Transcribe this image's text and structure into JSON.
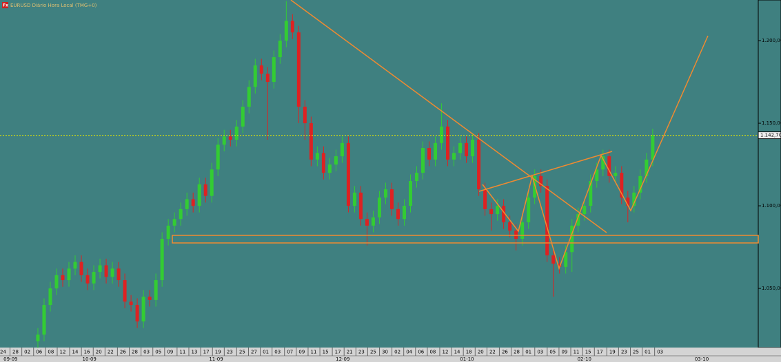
{
  "chart_data": {
    "type": "candlestick",
    "title": "EURUSD Diário Hora Local (TMG+0)",
    "up_color": "#33cc33",
    "down_color": "#dd2222",
    "open": [
      1.018,
      1.022,
      1.04,
      1.05,
      1.058,
      1.055,
      1.062,
      1.066,
      1.058,
      1.053,
      1.06,
      1.064,
      1.057,
      1.062,
      1.055,
      1.042,
      1.04,
      1.03,
      1.045,
      1.043,
      1.055,
      1.08,
      1.088,
      1.092,
      1.098,
      1.104,
      1.1,
      1.113,
      1.106,
      1.122,
      1.137,
      1.142,
      1.14,
      1.148,
      1.16,
      1.172,
      1.185,
      1.18,
      1.175,
      1.19,
      1.2,
      1.212,
      1.205,
      1.16,
      1.15,
      1.128,
      1.132,
      1.12,
      1.125,
      1.13,
      1.138,
      1.1,
      1.108,
      1.092,
      1.088,
      1.093,
      1.105,
      1.11,
      1.098,
      1.092,
      1.1,
      1.115,
      1.12,
      1.135,
      1.128,
      1.138,
      1.148,
      1.128,
      1.132,
      1.138,
      1.13,
      1.14,
      1.11,
      1.098,
      1.095,
      1.1,
      1.09,
      1.085,
      1.08,
      1.09,
      1.105,
      1.118,
      1.112,
      1.07,
      1.065,
      1.063,
      1.072,
      1.088,
      1.095,
      1.1,
      1.115,
      1.122,
      1.13,
      1.118,
      1.12,
      1.105,
      1.1,
      1.108,
      1.118,
      1.128
    ],
    "high": [
      1.026,
      1.044,
      1.054,
      1.062,
      1.062,
      1.066,
      1.07,
      1.07,
      1.062,
      1.064,
      1.068,
      1.068,
      1.066,
      1.066,
      1.059,
      1.046,
      1.044,
      1.049,
      1.049,
      1.059,
      1.084,
      1.092,
      1.096,
      1.102,
      1.108,
      1.108,
      1.117,
      1.117,
      1.126,
      1.141,
      1.146,
      1.146,
      1.152,
      1.164,
      1.176,
      1.189,
      1.189,
      1.184,
      1.194,
      1.204,
      1.224,
      1.216,
      1.209,
      1.164,
      1.154,
      1.136,
      1.136,
      1.129,
      1.134,
      1.142,
      1.142,
      1.112,
      1.112,
      1.096,
      1.097,
      1.109,
      1.114,
      1.114,
      1.102,
      1.104,
      1.119,
      1.124,
      1.139,
      1.139,
      1.142,
      1.162,
      1.152,
      1.136,
      1.142,
      1.142,
      1.144,
      1.144,
      1.114,
      1.102,
      1.104,
      1.104,
      1.094,
      1.089,
      1.094,
      1.109,
      1.122,
      1.122,
      1.116,
      1.074,
      1.069,
      1.076,
      1.092,
      1.099,
      1.104,
      1.119,
      1.126,
      1.134,
      1.134,
      1.124,
      1.124,
      1.109,
      1.112,
      1.122,
      1.132,
      1.1467
    ],
    "low": [
      1.014,
      1.018,
      1.036,
      1.046,
      1.051,
      1.051,
      1.058,
      1.054,
      1.049,
      1.049,
      1.056,
      1.053,
      1.053,
      1.051,
      1.038,
      1.036,
      1.026,
      1.026,
      1.039,
      1.039,
      1.051,
      1.076,
      1.084,
      1.088,
      1.094,
      1.096,
      1.096,
      1.102,
      1.102,
      1.118,
      1.133,
      1.136,
      1.136,
      1.144,
      1.156,
      1.168,
      1.176,
      1.14,
      1.171,
      1.186,
      1.196,
      1.201,
      1.15,
      1.14,
      1.124,
      1.124,
      1.116,
      1.116,
      1.121,
      1.126,
      1.096,
      1.096,
      1.088,
      1.076,
      1.084,
      1.089,
      1.101,
      1.094,
      1.088,
      1.088,
      1.096,
      1.111,
      1.116,
      1.124,
      1.124,
      1.134,
      1.124,
      1.124,
      1.128,
      1.126,
      1.126,
      1.106,
      1.094,
      1.085,
      1.091,
      1.086,
      1.081,
      1.073,
      1.076,
      1.086,
      1.101,
      1.108,
      1.066,
      1.045,
      1.059,
      1.059,
      1.06,
      1.084,
      1.091,
      1.096,
      1.111,
      1.118,
      1.114,
      1.114,
      1.101,
      1.09,
      1.096,
      1.104,
      1.114,
      1.124
    ],
    "close": [
      1.022,
      1.04,
      1.05,
      1.058,
      1.055,
      1.062,
      1.066,
      1.058,
      1.053,
      1.06,
      1.064,
      1.057,
      1.062,
      1.055,
      1.042,
      1.04,
      1.03,
      1.045,
      1.043,
      1.055,
      1.08,
      1.088,
      1.092,
      1.098,
      1.104,
      1.1,
      1.113,
      1.106,
      1.122,
      1.137,
      1.142,
      1.14,
      1.148,
      1.16,
      1.172,
      1.185,
      1.18,
      1.175,
      1.19,
      1.2,
      1.212,
      1.205,
      1.16,
      1.15,
      1.128,
      1.132,
      1.12,
      1.125,
      1.13,
      1.138,
      1.1,
      1.108,
      1.092,
      1.088,
      1.093,
      1.105,
      1.11,
      1.098,
      1.092,
      1.1,
      1.115,
      1.12,
      1.135,
      1.128,
      1.138,
      1.148,
      1.128,
      1.132,
      1.138,
      1.13,
      1.14,
      1.11,
      1.098,
      1.095,
      1.1,
      1.09,
      1.085,
      1.08,
      1.09,
      1.105,
      1.118,
      1.112,
      1.07,
      1.065,
      1.063,
      1.072,
      1.088,
      1.095,
      1.1,
      1.115,
      1.122,
      1.13,
      1.118,
      1.12,
      1.105,
      1.1,
      1.108,
      1.118,
      1.128,
      1.1427
    ],
    "xlim": [
      -6.1,
      116
    ],
    "ylim": [
      1.0142,
      1.2246
    ],
    "yticks": [
      {
        "value": 1.05,
        "label": "1.050,00"
      },
      {
        "value": 1.1,
        "label": "1.100,00"
      },
      {
        "value": 1.15,
        "label": "1.150,00"
      },
      {
        "value": 1.2,
        "label": "1.200,00"
      }
    ],
    "last_price": {
      "value": 1.1427,
      "label": "1.142,70"
    },
    "xticks": [
      {
        "value": -5.6,
        "label": "24"
      },
      {
        "value": -3.6,
        "label": "28"
      },
      {
        "value": -1.7,
        "label": "02"
      },
      {
        "value": 0.2,
        "label": "06"
      },
      {
        "value": 2.1,
        "label": "08"
      },
      {
        "value": 4.0,
        "label": "12"
      },
      {
        "value": 6.0,
        "label": "14"
      },
      {
        "value": 7.9,
        "label": "16"
      },
      {
        "value": 9.8,
        "label": "20"
      },
      {
        "value": 11.7,
        "label": "22"
      },
      {
        "value": 13.7,
        "label": "26"
      },
      {
        "value": 15.6,
        "label": "28"
      },
      {
        "value": 17.5,
        "label": "03"
      },
      {
        "value": 19.4,
        "label": "05"
      },
      {
        "value": 21.3,
        "label": "09"
      },
      {
        "value": 23.3,
        "label": "11"
      },
      {
        "value": 25.2,
        "label": "13"
      },
      {
        "value": 27.1,
        "label": "17"
      },
      {
        "value": 29.0,
        "label": "19"
      },
      {
        "value": 30.9,
        "label": "23"
      },
      {
        "value": 32.9,
        "label": "25"
      },
      {
        "value": 34.8,
        "label": "27"
      },
      {
        "value": 36.7,
        "label": "01"
      },
      {
        "value": 38.6,
        "label": "03"
      },
      {
        "value": 40.6,
        "label": "07"
      },
      {
        "value": 42.5,
        "label": "09"
      },
      {
        "value": 44.4,
        "label": "11"
      },
      {
        "value": 46.3,
        "label": "15"
      },
      {
        "value": 48.3,
        "label": "17"
      },
      {
        "value": 50.2,
        "label": "21"
      },
      {
        "value": 52.1,
        "label": "23"
      },
      {
        "value": 54.0,
        "label": "25"
      },
      {
        "value": 55.9,
        "label": "30"
      },
      {
        "value": 57.9,
        "label": "02"
      },
      {
        "value": 59.8,
        "label": "04"
      },
      {
        "value": 61.7,
        "label": "06"
      },
      {
        "value": 63.6,
        "label": "08"
      },
      {
        "value": 65.6,
        "label": "12"
      },
      {
        "value": 67.5,
        "label": "14"
      },
      {
        "value": 69.4,
        "label": "18"
      },
      {
        "value": 71.3,
        "label": "20"
      },
      {
        "value": 73.2,
        "label": "22"
      },
      {
        "value": 75.2,
        "label": "26"
      },
      {
        "value": 77.1,
        "label": "28"
      },
      {
        "value": 79.0,
        "label": "01"
      },
      {
        "value": 80.9,
        "label": "03"
      },
      {
        "value": 82.9,
        "label": "05"
      },
      {
        "value": 84.8,
        "label": "09"
      },
      {
        "value": 86.7,
        "label": "11"
      },
      {
        "value": 88.6,
        "label": "15"
      },
      {
        "value": 90.5,
        "label": "17"
      },
      {
        "value": 92.5,
        "label": "19"
      },
      {
        "value": 94.4,
        "label": "23"
      },
      {
        "value": 96.3,
        "label": "25"
      },
      {
        "value": 98.2,
        "label": "01"
      },
      {
        "value": 100.2,
        "label": "03"
      }
    ],
    "month_ticks": [
      {
        "value": -4.4,
        "label": "09-09"
      },
      {
        "value": 8.3,
        "label": "10-09"
      },
      {
        "value": 28.7,
        "label": "11-09"
      },
      {
        "value": 49.1,
        "label": "12-09"
      },
      {
        "value": 69.1,
        "label": "01-10"
      },
      {
        "value": 88.0,
        "label": "02-10"
      },
      {
        "value": 106.9,
        "label": "03-10"
      }
    ]
  }
}
